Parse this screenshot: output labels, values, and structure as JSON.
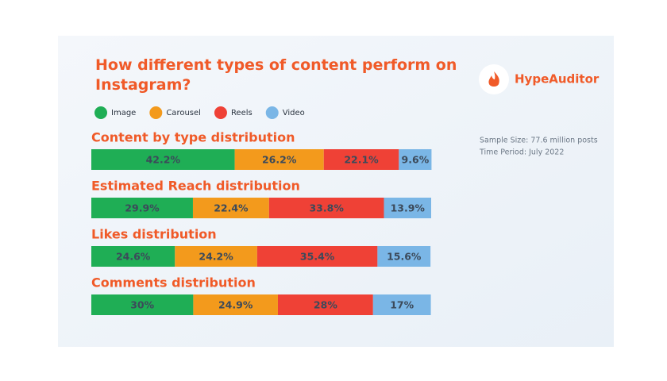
{
  "brand": "HypeAuditor",
  "notes": [
    "Sample Size: 77.6 million posts",
    "Time Period: July 2022"
  ],
  "chart_data": {
    "type": "bar",
    "orientation": "horizontal",
    "stacked": true,
    "title": "How different types of content perform on Instagram?",
    "categories": [
      "Content by type distribution",
      "Estimated Reach distribution",
      "Likes distribution",
      "Comments distribution"
    ],
    "xlim": [
      0,
      100
    ],
    "series": [
      {
        "name": "Image",
        "color": "#1fae55",
        "values": [
          42.2,
          29.9,
          24.6,
          30
        ],
        "value_labels": [
          "42.2%",
          "29.9%",
          "24.6%",
          "30%"
        ]
      },
      {
        "name": "Carousel",
        "color": "#f39a1c",
        "values": [
          26.2,
          22.4,
          24.2,
          24.9
        ],
        "value_labels": [
          "26.2%",
          "22.4%",
          "24.2%",
          "24.9%"
        ]
      },
      {
        "name": "Reels",
        "color": "#ef4136",
        "values": [
          22.1,
          33.8,
          35.4,
          28
        ],
        "value_labels": [
          "22.1%",
          "33.8%",
          "35.4%",
          "28%"
        ]
      },
      {
        "name": "Video",
        "color": "#7ab6e6",
        "values": [
          9.6,
          13.9,
          15.6,
          17
        ],
        "value_labels": [
          "9.6%",
          "13.9%",
          "15.6%",
          "17%"
        ]
      }
    ]
  }
}
